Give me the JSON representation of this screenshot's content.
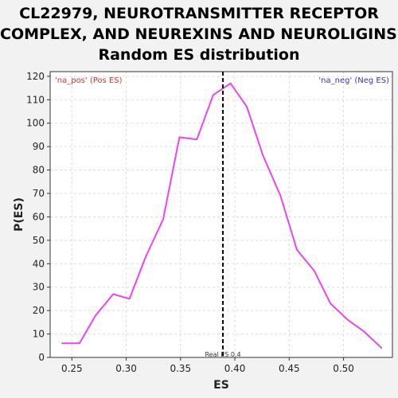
{
  "title_lines": [
    "CL22979, NEUROTRANSMITTER RECEPTOR",
    "COMPLEX, AND NEUREXINS AND NEUROLIGINS:",
    "Random ES distribution"
  ],
  "chart_data": {
    "type": "line",
    "title": "CL22979, NEUROTRANSMITTER RECEPTOR COMPLEX, AND NEUREXINS AND NEUROLIGINS: Random ES distribution",
    "xlabel": "ES",
    "ylabel": "P(ES)",
    "xlim": [
      0.23,
      0.545
    ],
    "ylim": [
      0,
      122
    ],
    "x_ticks": [
      "0.25",
      "0.30",
      "0.35",
      "0.40",
      "0.45",
      "0.50"
    ],
    "x_tick_values": [
      0.25,
      0.3,
      0.35,
      0.4,
      0.45,
      0.5
    ],
    "y_ticks": [
      0,
      10,
      20,
      30,
      40,
      50,
      60,
      70,
      80,
      90,
      100,
      110,
      120
    ],
    "grid": true,
    "series": [
      {
        "color": "#ee44ee",
        "x": [
          0.241,
          0.257,
          0.272,
          0.288,
          0.303,
          0.318,
          0.334,
          0.349,
          0.365,
          0.38,
          0.396,
          0.411,
          0.426,
          0.442,
          0.457,
          0.473,
          0.488,
          0.504,
          0.519,
          0.535
        ],
        "y": [
          6,
          6,
          18,
          27,
          25,
          43,
          59,
          94,
          93,
          112,
          117,
          107,
          86,
          69,
          46,
          37,
          23,
          16,
          11,
          4
        ]
      }
    ],
    "vline": {
      "x": 0.389,
      "label": "Real ES 0.4",
      "color": "#000000"
    },
    "annotations": [
      {
        "text": "'na_pos' (Pos ES)",
        "position": "top-left",
        "color": "#e03030"
      },
      {
        "text": "'na_neg' (Neg ES)",
        "position": "top-right",
        "color": "#3333cc"
      }
    ]
  }
}
